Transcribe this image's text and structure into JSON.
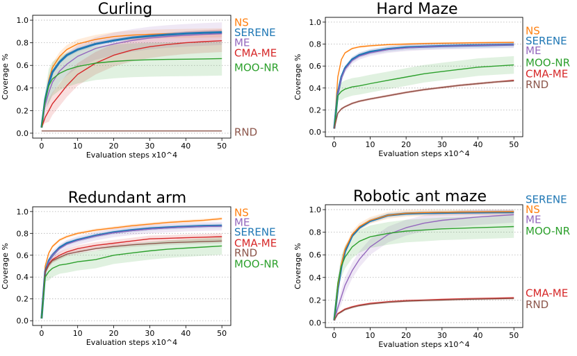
{
  "colors": {
    "NS": "#ff7f0e",
    "SERENE": "#1f77b4",
    "ME": "#9467bd",
    "CMA-ME": "#d62728",
    "MOO-NR": "#2ca02c",
    "RND": "#8c564b"
  },
  "chart_data": [
    {
      "type": "line",
      "title": "Curling",
      "xlabel": "Evaluation steps x10^4",
      "ylabel": "Coverage %",
      "xlim": [
        0,
        50
      ],
      "ylim": [
        0,
        1.0
      ],
      "xticks": [
        "0",
        "10",
        "20",
        "30",
        "40",
        "50"
      ],
      "yticks": [
        "0.0",
        "0.2",
        "0.4",
        "0.6",
        "0.8",
        "1.0"
      ],
      "grid": "horizontal dotted",
      "legend_placement": "right",
      "legend_order": [
        "NS",
        "SERENE",
        "ME",
        "CMA-ME",
        "MOO-NR",
        "RND"
      ],
      "x": [
        0,
        1,
        2,
        3,
        5,
        7,
        10,
        15,
        20,
        25,
        30,
        35,
        40,
        45,
        50
      ],
      "series": [
        {
          "name": "NS",
          "values": [
            0.05,
            0.3,
            0.47,
            0.58,
            0.68,
            0.74,
            0.79,
            0.83,
            0.855,
            0.868,
            0.875,
            0.88,
            0.883,
            0.886,
            0.888
          ],
          "band": 0.04
        },
        {
          "name": "SERENE",
          "values": [
            0.05,
            0.3,
            0.44,
            0.54,
            0.63,
            0.69,
            0.74,
            0.79,
            0.82,
            0.845,
            0.86,
            0.872,
            0.882,
            0.889,
            0.893
          ],
          "band": 0.02
        },
        {
          "name": "ME",
          "values": [
            0.05,
            0.25,
            0.36,
            0.45,
            0.55,
            0.61,
            0.68,
            0.75,
            0.79,
            0.82,
            0.842,
            0.856,
            0.866,
            0.874,
            0.88
          ],
          "band": 0.1
        },
        {
          "name": "CMA-ME",
          "values": [
            0.05,
            0.14,
            0.2,
            0.26,
            0.34,
            0.42,
            0.52,
            0.62,
            0.69,
            0.735,
            0.765,
            0.785,
            0.8,
            0.81,
            0.818
          ],
          "band": 0.1
        },
        {
          "name": "MOO-NR",
          "values": [
            0.05,
            0.3,
            0.42,
            0.48,
            0.53,
            0.56,
            0.59,
            0.62,
            0.635,
            0.645,
            0.65,
            0.653,
            0.655,
            0.657,
            0.66
          ],
          "band": 0.15
        },
        {
          "name": "RND",
          "values": [
            0.02,
            0.02,
            0.02,
            0.02,
            0.02,
            0.02,
            0.02,
            0.02,
            0.02,
            0.02,
            0.02,
            0.02,
            0.02,
            0.02,
            0.02
          ],
          "band": 0.004
        }
      ],
      "labels": [
        {
          "name": "NS",
          "value": 0.98
        },
        {
          "name": "SERENE",
          "value": 0.89
        },
        {
          "name": "ME",
          "value": 0.8
        },
        {
          "name": "CMA-ME",
          "value": 0.71
        },
        {
          "name": "MOO-NR",
          "value": 0.58
        },
        {
          "name": "RND",
          "value": 0.01
        }
      ]
    },
    {
      "type": "line",
      "title": "Hard Maze",
      "xlabel": "Evaluation steps x10^4",
      "ylabel": "Coverage %",
      "xlim": [
        0,
        50
      ],
      "ylim": [
        0,
        1.0
      ],
      "xticks": [
        "0",
        "10",
        "20",
        "30",
        "40",
        "50"
      ],
      "yticks": [
        "0.0",
        "0.2",
        "0.4",
        "0.6",
        "0.8",
        "1.0"
      ],
      "grid": "horizontal dotted",
      "legend_placement": "right",
      "legend_order": [
        "NS",
        "SERENE",
        "ME",
        "MOO-NR",
        "CMA-ME",
        "RND"
      ],
      "x": [
        0,
        1,
        2,
        3,
        5,
        7,
        10,
        15,
        20,
        25,
        30,
        35,
        40,
        45,
        50
      ],
      "series": [
        {
          "name": "NS",
          "values": [
            0.03,
            0.5,
            0.66,
            0.72,
            0.76,
            0.775,
            0.785,
            0.795,
            0.8,
            0.805,
            0.808,
            0.81,
            0.812,
            0.814,
            0.815
          ],
          "band": 0.01
        },
        {
          "name": "SERENE",
          "values": [
            0.03,
            0.35,
            0.5,
            0.58,
            0.66,
            0.7,
            0.73,
            0.755,
            0.77,
            0.777,
            0.782,
            0.786,
            0.789,
            0.792,
            0.795
          ],
          "band": 0.025
        },
        {
          "name": "ME",
          "values": [
            0.03,
            0.34,
            0.49,
            0.57,
            0.65,
            0.69,
            0.72,
            0.75,
            0.765,
            0.775,
            0.78,
            0.784,
            0.788,
            0.791,
            0.794
          ],
          "band": 0.03
        },
        {
          "name": "MOO-NR",
          "values": [
            0.03,
            0.33,
            0.37,
            0.39,
            0.41,
            0.42,
            0.44,
            0.47,
            0.5,
            0.53,
            0.55,
            0.57,
            0.59,
            0.6,
            0.61
          ],
          "band": 0.08
        },
        {
          "name": "CMA-ME",
          "values": [
            0.03,
            0.17,
            0.21,
            0.23,
            0.26,
            0.28,
            0.3,
            0.33,
            0.36,
            0.385,
            0.405,
            0.425,
            0.44,
            0.455,
            0.47
          ],
          "band": 0.01
        },
        {
          "name": "RND",
          "values": [
            0.03,
            0.17,
            0.21,
            0.23,
            0.26,
            0.28,
            0.3,
            0.33,
            0.36,
            0.385,
            0.405,
            0.425,
            0.44,
            0.455,
            0.465
          ],
          "band": 0.01
        }
      ],
      "labels": [
        {
          "name": "NS",
          "value": 0.92
        },
        {
          "name": "SERENE",
          "value": 0.83
        },
        {
          "name": "ME",
          "value": 0.74
        },
        {
          "name": "MOO-NR",
          "value": 0.63
        },
        {
          "name": "CMA-ME",
          "value": 0.53
        },
        {
          "name": "RND",
          "value": 0.43
        }
      ]
    },
    {
      "type": "line",
      "title": "Redundant arm",
      "xlabel": "Evaluation steps x10^4",
      "ylabel": "Coverage %",
      "xlim": [
        0,
        50
      ],
      "ylim": [
        0,
        1.0
      ],
      "xticks": [
        "0",
        "10",
        "20",
        "30",
        "40",
        "50"
      ],
      "yticks": [
        "0.0",
        "0.2",
        "0.4",
        "0.6",
        "0.8",
        "1.0"
      ],
      "grid": "horizontal dotted",
      "legend_placement": "right",
      "legend_order": [
        "NS",
        "ME",
        "SERENE",
        "CMA-ME",
        "RND",
        "MOO-NR"
      ],
      "x": [
        0,
        1,
        2,
        3,
        5,
        7,
        10,
        15,
        20,
        25,
        30,
        35,
        40,
        45,
        50
      ],
      "series": [
        {
          "name": "NS",
          "values": [
            0.02,
            0.5,
            0.62,
            0.68,
            0.74,
            0.77,
            0.8,
            0.83,
            0.85,
            0.87,
            0.885,
            0.9,
            0.91,
            0.92,
            0.935
          ],
          "band": 0.015
        },
        {
          "name": "SERENE",
          "values": [
            0.02,
            0.45,
            0.55,
            0.6,
            0.67,
            0.71,
            0.74,
            0.78,
            0.81,
            0.83,
            0.845,
            0.855,
            0.862,
            0.868,
            0.87
          ],
          "band": 0.02
        },
        {
          "name": "ME",
          "values": [
            0.02,
            0.44,
            0.54,
            0.6,
            0.66,
            0.7,
            0.735,
            0.775,
            0.805,
            0.825,
            0.84,
            0.85,
            0.858,
            0.863,
            0.866
          ],
          "band": 0.04
        },
        {
          "name": "CMA-ME",
          "values": [
            0.02,
            0.45,
            0.52,
            0.56,
            0.6,
            0.63,
            0.66,
            0.69,
            0.71,
            0.73,
            0.75,
            0.755,
            0.76,
            0.765,
            0.77
          ],
          "band": 0.03
        },
        {
          "name": "RND",
          "values": [
            0.02,
            0.44,
            0.51,
            0.55,
            0.58,
            0.61,
            0.63,
            0.66,
            0.68,
            0.695,
            0.705,
            0.715,
            0.72,
            0.725,
            0.73
          ],
          "band": 0.02
        },
        {
          "name": "MOO-NR",
          "values": [
            0.02,
            0.4,
            0.45,
            0.48,
            0.51,
            0.52,
            0.54,
            0.56,
            0.6,
            0.62,
            0.64,
            0.655,
            0.665,
            0.675,
            0.685
          ],
          "band": 0.08
        }
      ],
      "labels": [
        {
          "name": "NS",
          "value": 0.99
        },
        {
          "name": "ME",
          "value": 0.9
        },
        {
          "name": "SERENE",
          "value": 0.81
        },
        {
          "name": "CMA-ME",
          "value": 0.71
        },
        {
          "name": "RND",
          "value": 0.62
        },
        {
          "name": "MOO-NR",
          "value": 0.52
        }
      ]
    },
    {
      "type": "line",
      "title": "Robotic ant maze",
      "xlabel": "Evaluation steps x10^4",
      "ylabel": "Coverage %",
      "xlim": [
        0,
        50
      ],
      "ylim": [
        0,
        1.0
      ],
      "xticks": [
        "0",
        "10",
        "20",
        "30",
        "40",
        "50"
      ],
      "yticks": [
        "0.0",
        "0.2",
        "0.4",
        "0.6",
        "0.8",
        "1.0"
      ],
      "grid": "horizontal dotted",
      "legend_placement": "right",
      "legend_order": [
        "SERENE",
        "NS",
        "ME",
        "MOO-NR",
        "CMA-ME",
        "RND"
      ],
      "x": [
        0,
        1,
        2,
        3,
        5,
        7,
        10,
        15,
        20,
        25,
        30,
        35,
        40,
        45,
        50
      ],
      "series": [
        {
          "name": "SERENE",
          "values": [
            0.02,
            0.3,
            0.5,
            0.63,
            0.77,
            0.84,
            0.9,
            0.95,
            0.965,
            0.97,
            0.972,
            0.975,
            0.976,
            0.977,
            0.978
          ],
          "band": 0.02
        },
        {
          "name": "NS",
          "values": [
            0.02,
            0.32,
            0.52,
            0.65,
            0.78,
            0.85,
            0.905,
            0.95,
            0.968,
            0.974,
            0.977,
            0.979,
            0.98,
            0.981,
            0.982
          ],
          "band": 0.03
        },
        {
          "name": "ME",
          "values": [
            0.02,
            0.13,
            0.23,
            0.33,
            0.46,
            0.56,
            0.67,
            0.78,
            0.84,
            0.88,
            0.905,
            0.92,
            0.935,
            0.945,
            0.955
          ],
          "band": 0.07
        },
        {
          "name": "MOO-NR",
          "values": [
            0.02,
            0.35,
            0.5,
            0.58,
            0.67,
            0.72,
            0.76,
            0.79,
            0.81,
            0.82,
            0.83,
            0.835,
            0.84,
            0.845,
            0.85
          ],
          "band": 0.1
        },
        {
          "name": "CMA-ME",
          "values": [
            0.02,
            0.08,
            0.1,
            0.12,
            0.14,
            0.155,
            0.17,
            0.185,
            0.195,
            0.2,
            0.205,
            0.21,
            0.213,
            0.216,
            0.22
          ],
          "band": 0.01
        },
        {
          "name": "RND",
          "values": [
            0.02,
            0.075,
            0.095,
            0.115,
            0.135,
            0.15,
            0.165,
            0.18,
            0.19,
            0.196,
            0.2,
            0.205,
            0.208,
            0.211,
            0.214
          ],
          "band": 0.01
        }
      ],
      "labels": [
        {
          "name": "SERENE",
          "value": 1.09
        },
        {
          "name": "NS",
          "value": 1.0
        },
        {
          "name": "ME",
          "value": 0.91
        },
        {
          "name": "MOO-NR",
          "value": 0.81
        },
        {
          "name": "CMA-ME",
          "value": 0.26
        },
        {
          "name": "RND",
          "value": 0.16
        }
      ]
    }
  ]
}
